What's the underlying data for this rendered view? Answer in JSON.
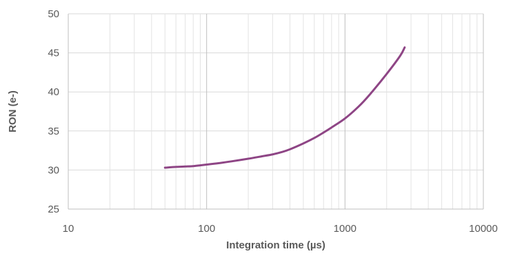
{
  "chart_data": {
    "type": "line",
    "title": "",
    "xlabel": "Integration time (µs)",
    "ylabel": "RON (e-)",
    "xscale": "log",
    "xlim": [
      10,
      10000
    ],
    "ylim": [
      25,
      50
    ],
    "grid": true,
    "legend": "none",
    "x_tick_labels": [
      "10",
      "100",
      "1000",
      "10000"
    ],
    "y_tick_labels": [
      "25",
      "30",
      "35",
      "40",
      "45",
      "50"
    ],
    "series": [
      {
        "color": "#8E4585",
        "x": [
          50,
          60,
          70,
          80,
          90,
          100,
          125,
          150,
          200,
          250,
          300,
          350,
          400,
          500,
          600,
          700,
          800,
          1000,
          1250,
          1500,
          2000,
          2500,
          2700
        ],
        "values": [
          30.3,
          30.4,
          30.45,
          30.5,
          30.6,
          30.7,
          30.9,
          31.1,
          31.45,
          31.75,
          32.0,
          32.3,
          32.65,
          33.4,
          34.1,
          34.8,
          35.45,
          36.6,
          38.1,
          39.6,
          42.3,
          44.6,
          45.7
        ]
      }
    ]
  }
}
